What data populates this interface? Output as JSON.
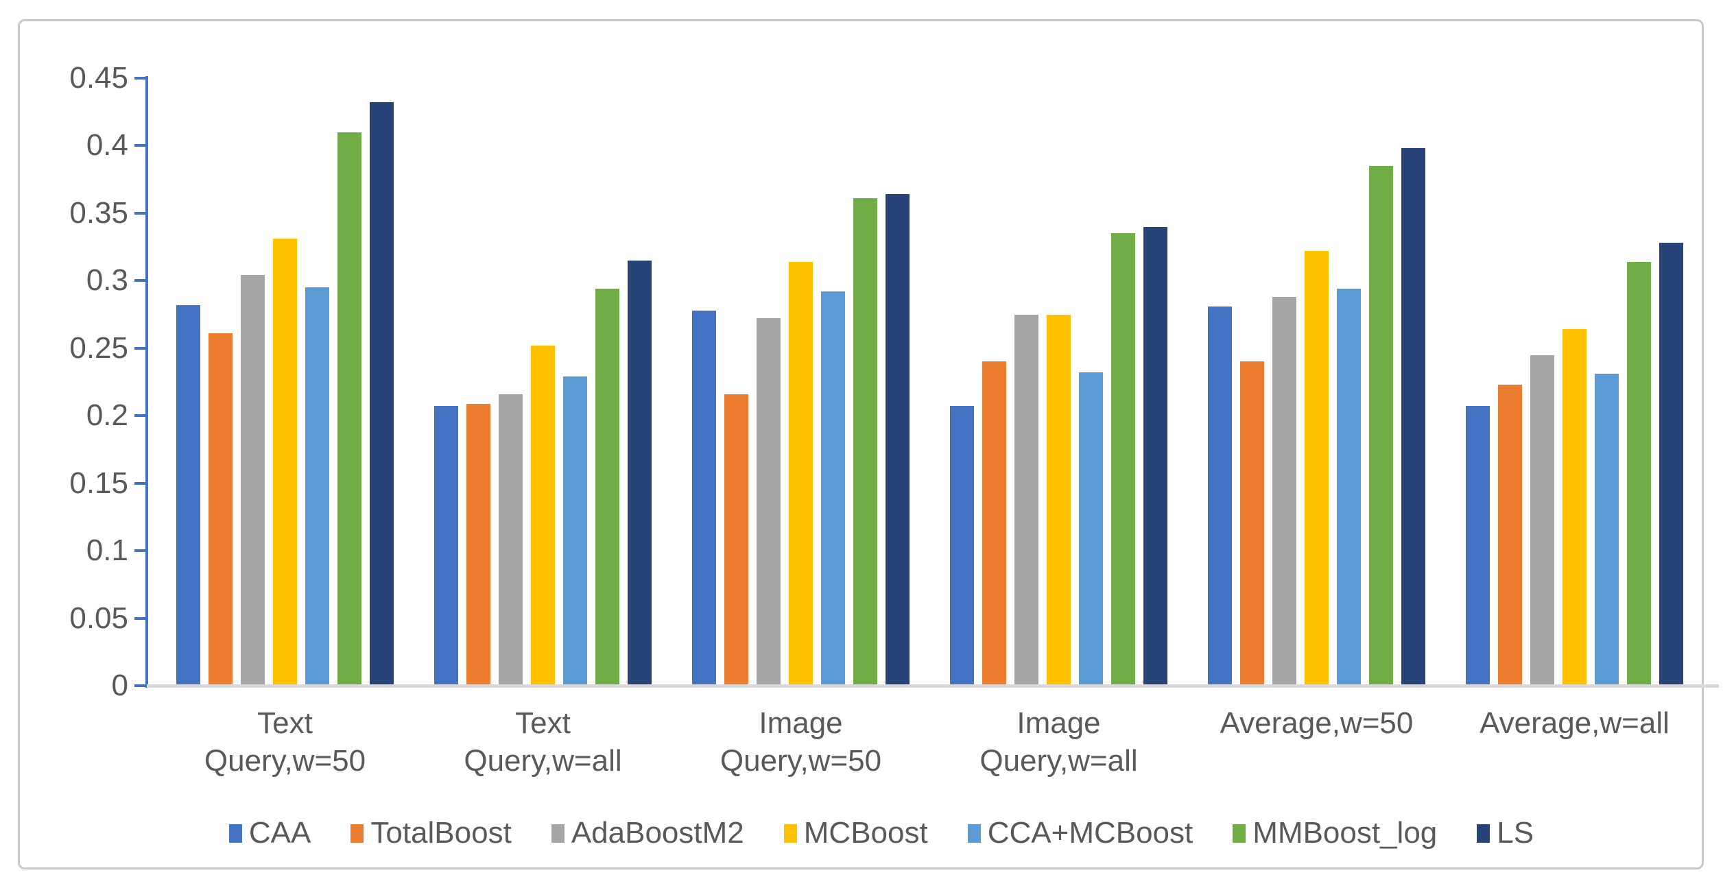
{
  "chart_data": {
    "type": "bar",
    "title": "",
    "xlabel": "",
    "ylabel": "",
    "categories": [
      "Text Query,w=50",
      "Text Query,w=all",
      "Image Query,w=50",
      "Image Query,w=all",
      "Average,w=50",
      "Average,w=all"
    ],
    "categories_lines": [
      [
        "Text",
        "Query,w=50"
      ],
      [
        "Text",
        "Query,w=all"
      ],
      [
        "Image",
        "Query,w=50"
      ],
      [
        "Image",
        "Query,w=all"
      ],
      [
        "Average,w=50",
        ""
      ],
      [
        "Average,w=all",
        ""
      ]
    ],
    "series": [
      {
        "name": "CAA",
        "color": "#4472C4",
        "values": [
          0.282,
          0.207,
          0.278,
          0.207,
          0.281,
          0.207
        ]
      },
      {
        "name": "TotalBoost",
        "color": "#ED7D31",
        "values": [
          0.261,
          0.209,
          0.216,
          0.24,
          0.24,
          0.223
        ]
      },
      {
        "name": "AdaBoostM2",
        "color": "#A5A5A5",
        "values": [
          0.304,
          0.216,
          0.272,
          0.275,
          0.288,
          0.245
        ]
      },
      {
        "name": "MCBoost",
        "color": "#FFC000",
        "values": [
          0.331,
          0.252,
          0.314,
          0.275,
          0.322,
          0.264
        ]
      },
      {
        "name": "CCA+MCBoost",
        "color": "#5B9BD5",
        "values": [
          0.295,
          0.229,
          0.292,
          0.232,
          0.294,
          0.231
        ]
      },
      {
        "name": "MMBoost_log",
        "color": "#70AD47",
        "values": [
          0.41,
          0.294,
          0.361,
          0.335,
          0.385,
          0.314
        ]
      },
      {
        "name": "LS",
        "color": "#264478",
        "values": [
          0.432,
          0.315,
          0.364,
          0.34,
          0.398,
          0.328
        ]
      }
    ],
    "ylim": [
      0,
      0.45
    ],
    "ytick_step": 0.05,
    "ytick_labels": [
      "0",
      "0.05",
      "0.1",
      "0.15",
      "0.2",
      "0.25",
      "0.3",
      "0.35",
      "0.4",
      "0.45"
    ],
    "grid": false,
    "legend_position": "bottom",
    "axis_color": "#4472C4",
    "baseline_color": "#D9D9D9",
    "text_color": "#595959",
    "frame_border_color": "#C9C9C9"
  }
}
